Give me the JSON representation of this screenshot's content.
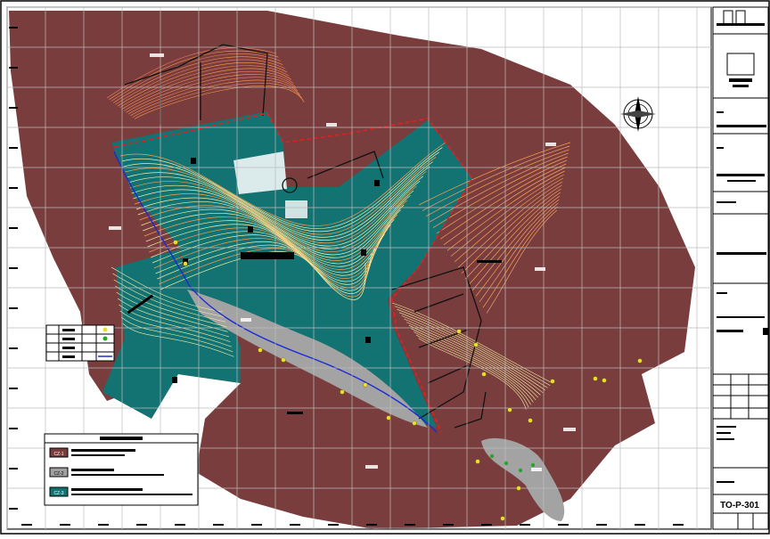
{
  "sheet": {
    "sheet_number": "TO-P-301",
    "zone_labels": [
      "CZ-1",
      "CZ-2",
      "CZ-3"
    ],
    "brand_colors": {
      "zone_1": "#7a3d3d",
      "zone_2": "#a0a0a0",
      "zone_3": "#137272",
      "contour_warm": "#ff9e4a",
      "contour_pale": "#f3f0a6",
      "boundary_red": "#e02020",
      "boundary_blue": "#1a2ad6"
    }
  },
  "icons": [
    "north-arrow-icon",
    "sign-marker-icon"
  ],
  "legend": {
    "zones": [
      {
        "code": "CZ-1",
        "color": "#7a3d3d"
      },
      {
        "code": "CZ-2",
        "color": "#a0a0a0"
      },
      {
        "code": "CZ-3",
        "color": "#137272"
      }
    ]
  }
}
